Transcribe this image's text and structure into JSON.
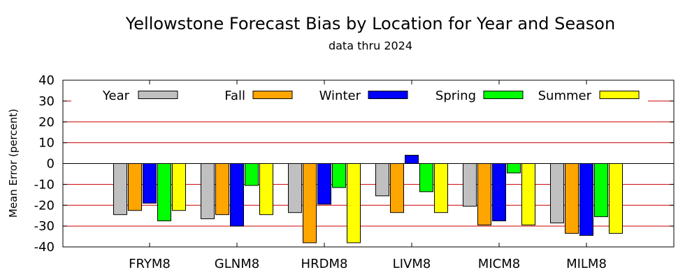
{
  "chart_data": {
    "type": "bar",
    "title": "Yellowstone Forecast Bias by Location for Year and Season",
    "subtitle": "data thru 2024",
    "xlabel": "",
    "ylabel": "Mean Error (percent)",
    "ylim": [
      -40,
      40
    ],
    "yticks": [
      40,
      30,
      20,
      10,
      0,
      -10,
      -20,
      -30,
      -40
    ],
    "categories": [
      "FRYM8",
      "GLNM8",
      "HRDM8",
      "LIVM8",
      "MICM8",
      "MILM8"
    ],
    "series": [
      {
        "name": "Year",
        "color": "#c0c0c0",
        "values": [
          -24.5,
          -26.5,
          -23.5,
          -15.5,
          -20.5,
          -28.5
        ]
      },
      {
        "name": "Fall",
        "color": "#ffa500",
        "values": [
          -22.5,
          -24.5,
          -38,
          -23.5,
          -29.5,
          -33.5
        ]
      },
      {
        "name": "Winter",
        "color": "#0000ff",
        "values": [
          -19,
          -30,
          -19.5,
          4,
          -27.5,
          -34.5
        ]
      },
      {
        "name": "Spring",
        "color": "#00ff00",
        "values": [
          -27.5,
          -10.5,
          -11.5,
          -13.5,
          -4.5,
          -25.5
        ]
      },
      {
        "name": "Summer",
        "color": "#ffff00",
        "values": [
          -22.5,
          -24.5,
          -38,
          -23.5,
          -29.5,
          -33.5
        ]
      }
    ],
    "grid": "horizontal",
    "grid_color": "#cc0000",
    "legend_position": "top"
  }
}
